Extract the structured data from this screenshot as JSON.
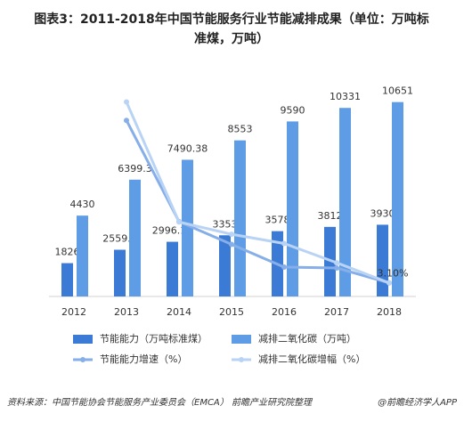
{
  "chart_data": {
    "type": "bar",
    "title": [
      "图表3：2011-2018年中国节能服务行业节能减排成果（单位：万吨标",
      "准煤，万吨）"
    ],
    "categories": [
      "2012",
      "2013",
      "2014",
      "2015",
      "2016",
      "2017",
      "2018"
    ],
    "ylim": [
      0,
      12000
    ],
    "y2lim": [
      0,
      50
    ],
    "series": [
      {
        "name": "节能能力（万吨标准煤）",
        "type": "bar",
        "color": "#3b7bd6",
        "values": [
          1826,
          2559.7,
          2996.15,
          3353,
          3578,
          3812,
          3930
        ]
      },
      {
        "name": "减排二氧化碳（万吨）",
        "type": "bar",
        "color": "#5e9de6",
        "values": [
          4430,
          6399.3,
          7490.38,
          8553,
          9590,
          10331,
          10651
        ]
      },
      {
        "name": "节能能力增速（%）",
        "type": "line",
        "axis": "y2",
        "color": "#86aee8",
        "values": [
          null,
          40.2,
          17.1,
          11.9,
          6.7,
          6.5,
          3.1
        ],
        "value_labels": [
          null,
          null,
          null,
          null,
          null,
          null,
          "3.10%"
        ]
      },
      {
        "name": "减排二氧化碳增幅（%）",
        "type": "line",
        "axis": "y2",
        "color": "#b9d3f5",
        "values": [
          null,
          44.4,
          17.0,
          14.2,
          12.1,
          7.7,
          3.1
        ]
      }
    ],
    "source": "资料来源：中国节能协会节能服务产业委员会（EMCA） 前瞻产业研究院整理",
    "credit": "@前瞻经济学人APP"
  }
}
